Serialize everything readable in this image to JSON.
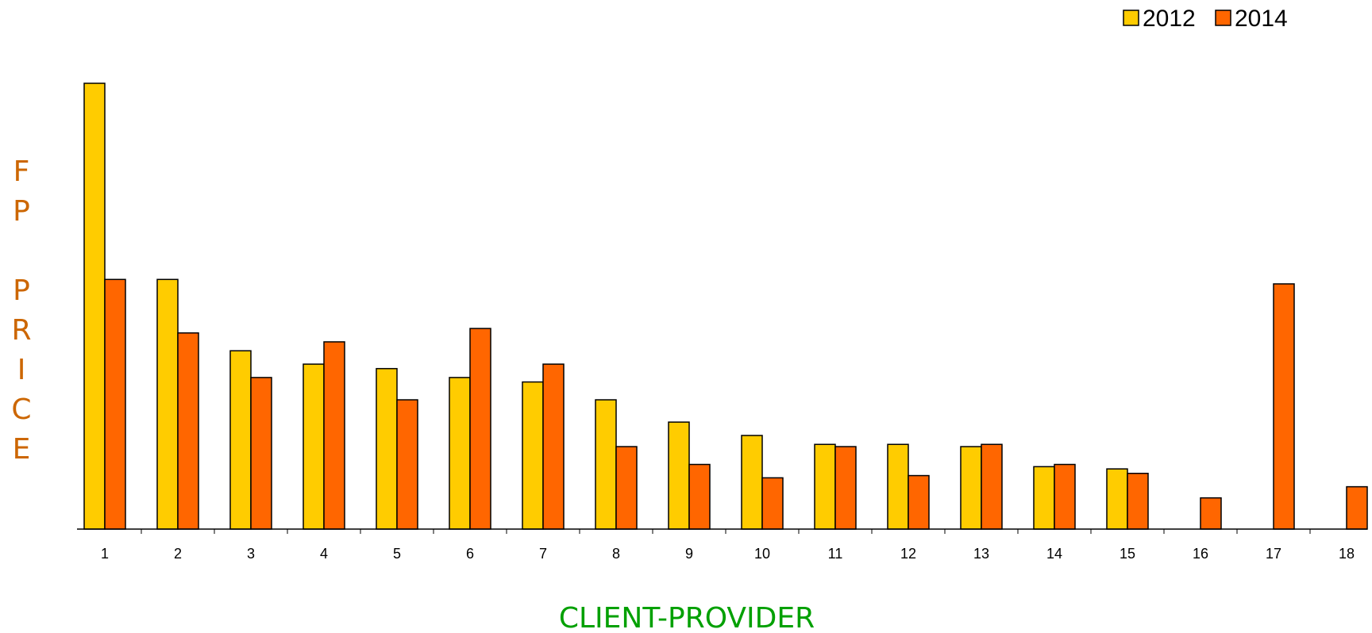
{
  "chart_data": {
    "type": "bar",
    "title": "",
    "xlabel": "CLIENT-PROVIDER",
    "ylabel": "FP PRICE",
    "ylabel_lines": [
      "F",
      "P",
      "",
      "P",
      "R",
      "I",
      "C",
      "E"
    ],
    "categories": [
      "1",
      "2",
      "3",
      "4",
      "5",
      "6",
      "7",
      "8",
      "9",
      "10",
      "11",
      "12",
      "13",
      "14",
      "15",
      "16",
      "17",
      "18"
    ],
    "series": [
      {
        "name": "2012",
        "values": [
          100,
          56,
          40,
          37,
          36,
          34,
          33,
          29,
          24,
          21,
          19,
          19,
          18.5,
          14,
          13.5,
          null,
          null,
          null
        ],
        "color": "#ffcc00"
      },
      {
        "name": "2014",
        "values": [
          56,
          44,
          34,
          42,
          29,
          45,
          37,
          18.5,
          14.5,
          11.5,
          18.5,
          12,
          19,
          14.5,
          12.5,
          7,
          55,
          9.5
        ],
        "color": "#ff6600"
      }
    ],
    "ylim": [
      0,
      100
    ],
    "grid": false,
    "legend_position": "top-right",
    "xlabel_color": "#00a000",
    "ylabel_color": "#cc6600",
    "bar_outline_color": "#000000",
    "axis_color": "#000000"
  }
}
